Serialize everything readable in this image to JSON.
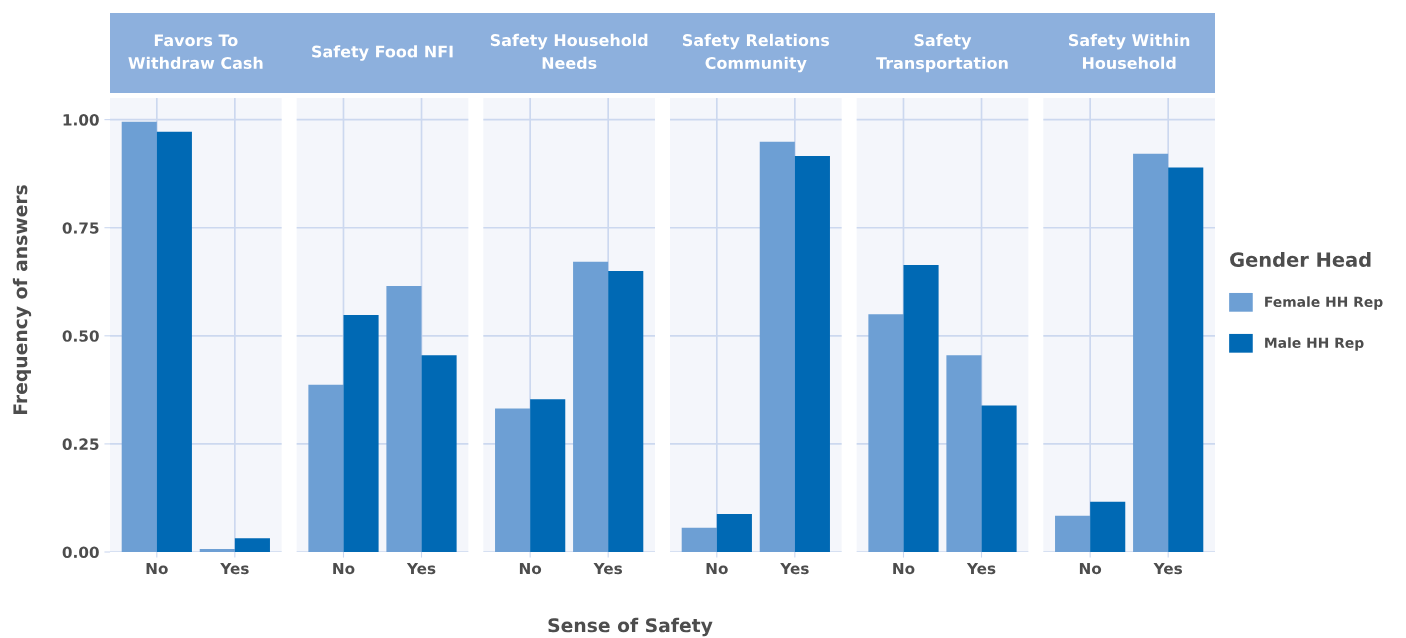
{
  "chart_data": [
    {
      "type": "bar",
      "title": "Favors To\nWithdraw Cash",
      "ylabel": "Frequency of answers",
      "categories": [
        "No",
        "Yes"
      ],
      "series": [
        {
          "color": "#6d9fd4",
          "values": [
            0.995,
            0.007
          ]
        },
        {
          "color": "#0069b4",
          "values": [
            0.972,
            0.032
          ]
        }
      ],
      "ylim": [
        0,
        1.05
      ],
      "yticks": [
        {
          "value": 0,
          "label": "0.00"
        },
        {
          "value": 0.25,
          "label": "0.25"
        },
        {
          "value": 0.5,
          "label": "0.50"
        },
        {
          "value": 0.75,
          "label": "0.75"
        },
        {
          "value": 1,
          "label": "1.00"
        }
      ],
      "grid": true
    },
    {
      "type": "bar",
      "title": "Safety Food NFI",
      "categories": [
        "No",
        "Yes"
      ],
      "series": [
        {
          "color": "#6d9fd4",
          "values": [
            0.387,
            0.615
          ]
        },
        {
          "color": "#0069b4",
          "values": [
            0.548,
            0.455
          ]
        }
      ],
      "ylim": [
        0,
        1.05
      ],
      "tick_labels": "x",
      "grid": true
    },
    {
      "type": "bar",
      "title": "Safety Household\nNeeds",
      "xlabel": "Sense of Safety",
      "categories": [
        "No",
        "Yes"
      ],
      "series": [
        {
          "color": "#6d9fd4",
          "values": [
            0.332,
            0.671
          ]
        },
        {
          "color": "#0069b4",
          "values": [
            0.353,
            0.65
          ]
        }
      ],
      "ylim": [
        0,
        1.05
      ],
      "tick_labels": "x",
      "grid": true
    },
    {
      "type": "bar",
      "title": "Safety Relations\nCommunity",
      "categories": [
        "No",
        "Yes"
      ],
      "series": [
        {
          "color": "#6d9fd4",
          "values": [
            0.056,
            0.949
          ]
        },
        {
          "color": "#0069b4",
          "values": [
            0.088,
            0.916
          ]
        }
      ],
      "ylim": [
        0,
        1.05
      ],
      "tick_labels": "x",
      "grid": true
    },
    {
      "type": "bar",
      "title": "Safety\nTransportation",
      "categories": [
        "No",
        "Yes"
      ],
      "series": [
        {
          "color": "#6d9fd4",
          "values": [
            0.55,
            0.455
          ]
        },
        {
          "color": "#0069b4",
          "values": [
            0.664,
            0.339
          ]
        }
      ],
      "ylim": [
        0,
        1.05
      ],
      "tick_labels": "x",
      "grid": true
    },
    {
      "type": "bar",
      "title": "Safety Within\nHousehold",
      "categories": [
        "No",
        "Yes"
      ],
      "series": [
        {
          "name": "Female HH Rep",
          "color": "#6d9fd4",
          "values": [
            0.084,
            0.921
          ]
        },
        {
          "name": "Male HH Rep",
          "color": "#0069b4",
          "values": [
            0.116,
            0.889
          ]
        }
      ],
      "ylim": [
        0,
        1.05
      ],
      "tick_labels": "x",
      "grid": true,
      "legend": "right",
      "legend_title": "Gender Head"
    }
  ]
}
